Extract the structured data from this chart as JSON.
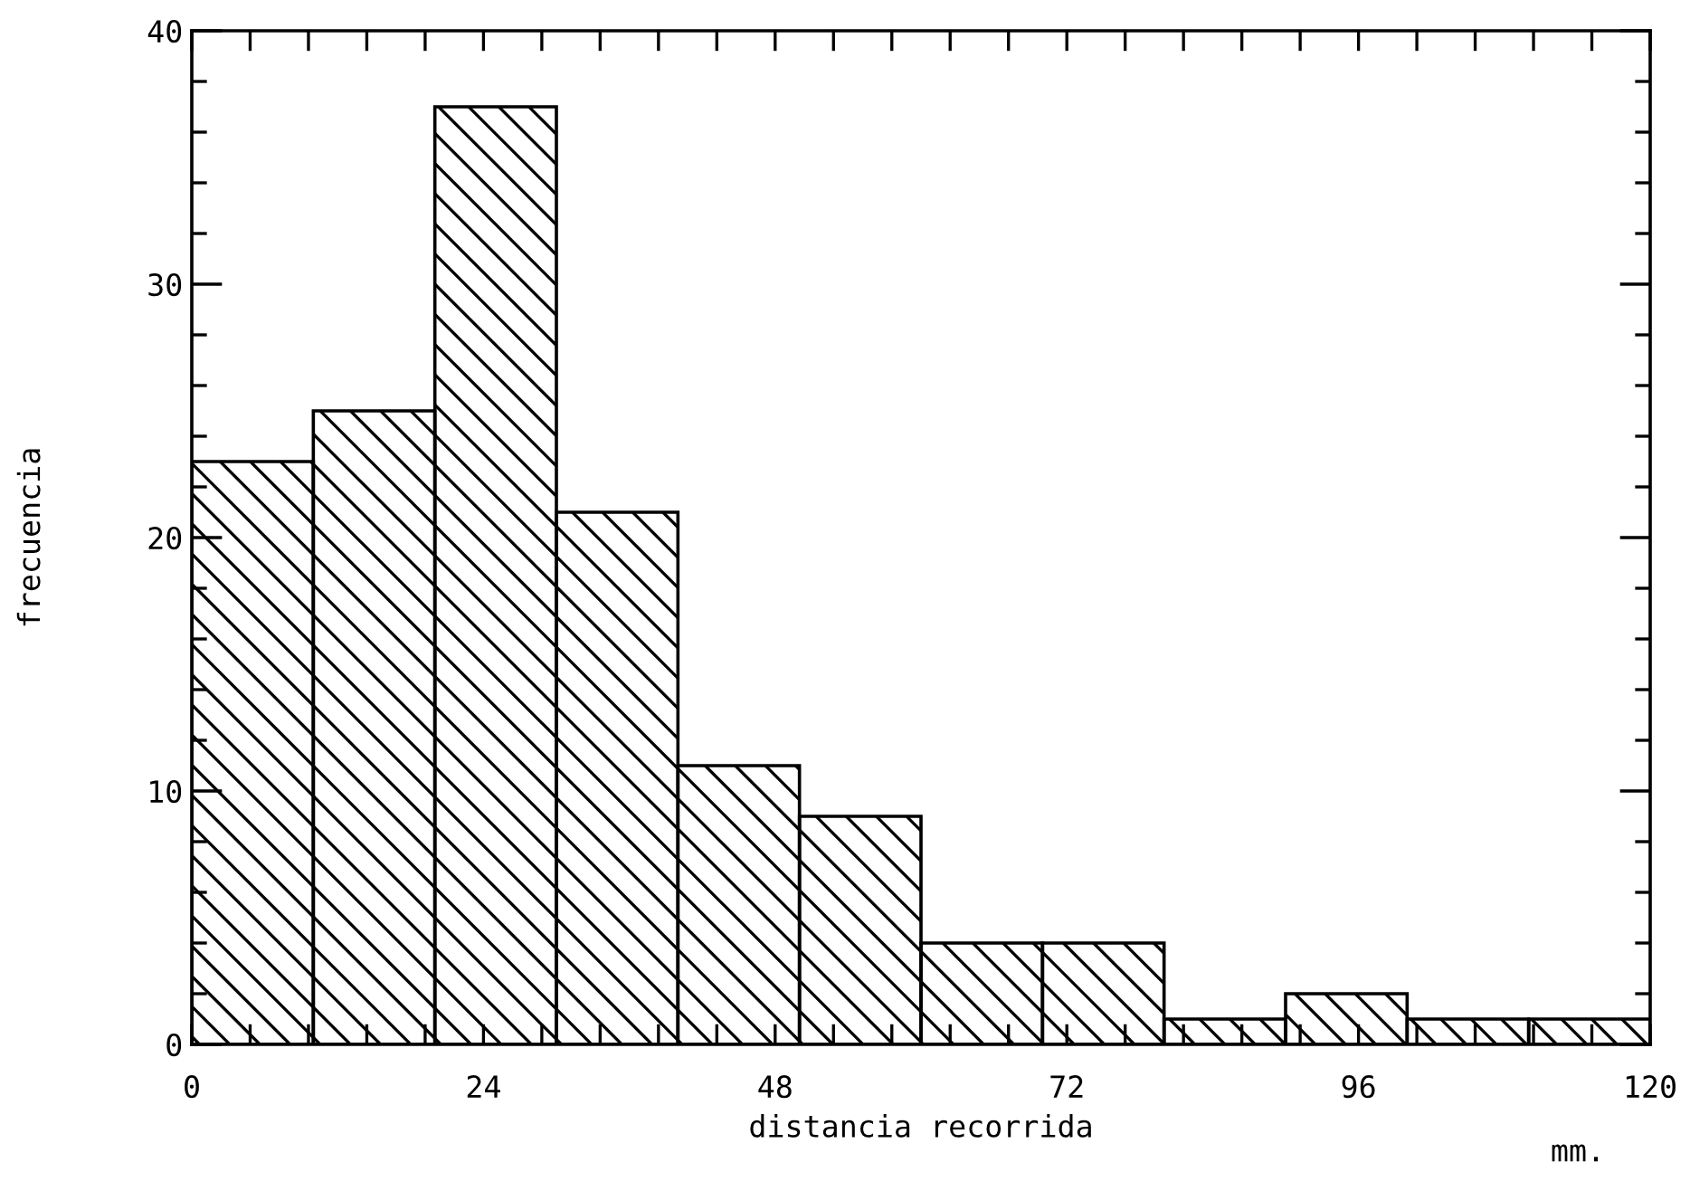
{
  "chart_data": {
    "type": "histogram",
    "xlabel": "distancia recorrida",
    "ylabel": "frecuencia",
    "bins": [
      0,
      10,
      20,
      30,
      40,
      50,
      60,
      70,
      80,
      90,
      100,
      110,
      120
    ],
    "values": [
      23,
      25,
      37,
      21,
      11,
      9,
      4,
      4,
      1,
      2,
      1,
      1
    ],
    "color": "#000000",
    "xlim": [
      0,
      120
    ],
    "ylim": [
      0,
      40
    ],
    "xticks": [
      0,
      {
        "value": 4.8,
        "label": null
      },
      {
        "value": 9.6,
        "label": null
      },
      {
        "value": 14.4,
        "label": null
      },
      {
        "value": 19.2,
        "label": null
      },
      24,
      {
        "value": 28.8,
        "label": null
      },
      {
        "value": 33.6,
        "label": null
      },
      {
        "value": 38.4,
        "label": null
      },
      {
        "value": 43.2,
        "label": null
      },
      48,
      {
        "value": 52.8,
        "label": null
      },
      {
        "value": 57.6,
        "label": null
      },
      {
        "value": 62.4,
        "label": null
      },
      {
        "value": 67.2,
        "label": null
      },
      72,
      {
        "value": 76.8,
        "label": null
      },
      {
        "value": 81.6,
        "label": null
      },
      {
        "value": 86.4,
        "label": null
      },
      {
        "value": 91.2,
        "label": null
      },
      96,
      {
        "value": 100.8,
        "label": null
      },
      {
        "value": 105.6,
        "label": null
      },
      {
        "value": 110.4,
        "label": null
      },
      {
        "value": 115.2,
        "label": null
      },
      120
    ],
    "yticks": [
      0,
      {
        "value": 2,
        "label": null
      },
      {
        "value": 4,
        "label": null
      },
      {
        "value": 6,
        "label": null
      },
      {
        "value": 8,
        "label": null
      },
      10,
      {
        "value": 12,
        "label": null
      },
      {
        "value": 14,
        "label": null
      },
      {
        "value": 16,
        "label": null
      },
      {
        "value": 18,
        "label": null
      },
      20,
      {
        "value": 22,
        "label": null
      },
      {
        "value": 24,
        "label": null
      },
      {
        "value": 26,
        "label": null
      },
      {
        "value": 28,
        "label": null
      },
      30,
      {
        "value": 32,
        "label": null
      },
      {
        "value": 34,
        "label": null
      },
      {
        "value": 36,
        "label": null
      },
      {
        "value": 38,
        "label": null
      },
      40
    ],
    "annotations": [
      "mm."
    ],
    "grid": false
  }
}
